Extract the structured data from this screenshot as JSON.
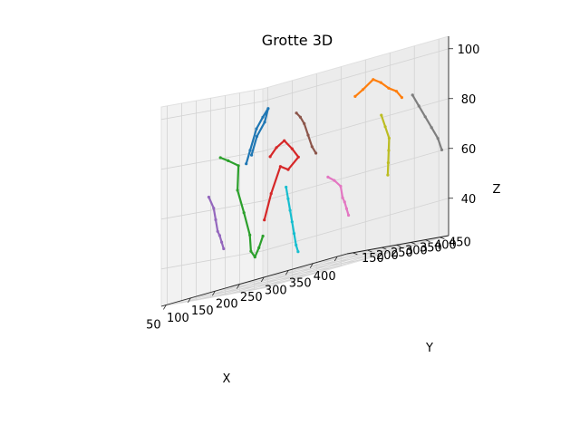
{
  "chart_data": {
    "type": "line",
    "projection": "3d",
    "title": "Grotte 3D",
    "xlabel": "X",
    "ylabel": "Y",
    "zlabel": "Z",
    "xticks": [
      50,
      100,
      150,
      200,
      250,
      300,
      350,
      400
    ],
    "yticks": [
      150,
      200,
      250,
      300,
      350,
      400,
      450
    ],
    "zticks": [
      40,
      60,
      80,
      100
    ],
    "xlim": [
      40,
      420
    ],
    "ylim": [
      130,
      480
    ],
    "zlim": [
      25,
      105
    ],
    "grid": true,
    "series": [
      {
        "color": "#1f77b4",
        "points": [
          [
            95,
            330,
            75
          ],
          [
            100,
            335,
            80
          ],
          [
            110,
            340,
            88
          ],
          [
            120,
            345,
            92
          ],
          [
            125,
            355,
            95
          ],
          [
            115,
            360,
            90
          ],
          [
            105,
            350,
            85
          ],
          [
            100,
            340,
            78
          ]
        ]
      },
      {
        "color": "#ff7f0e",
        "points": [
          [
            300,
            360,
            90
          ],
          [
            310,
            370,
            92
          ],
          [
            325,
            380,
            95
          ],
          [
            335,
            390,
            93
          ],
          [
            345,
            400,
            90
          ],
          [
            355,
            410,
            88
          ],
          [
            360,
            420,
            85
          ]
        ]
      },
      {
        "color": "#2ca02c",
        "points": [
          [
            60,
            300,
            80
          ],
          [
            70,
            310,
            78
          ],
          [
            85,
            320,
            75
          ],
          [
            95,
            300,
            65
          ],
          [
            120,
            280,
            55
          ],
          [
            150,
            250,
            45
          ],
          [
            170,
            220,
            38
          ],
          [
            190,
            200,
            35
          ],
          [
            210,
            180,
            38
          ],
          [
            230,
            160,
            42
          ]
        ]
      },
      {
        "color": "#d62728",
        "points": [
          [
            150,
            320,
            75
          ],
          [
            160,
            325,
            78
          ],
          [
            170,
            335,
            80
          ],
          [
            180,
            345,
            76
          ],
          [
            190,
            350,
            72
          ],
          [
            175,
            340,
            68
          ],
          [
            165,
            330,
            70
          ],
          [
            155,
            315,
            60
          ],
          [
            150,
            300,
            50
          ]
        ]
      },
      {
        "color": "#9467bd",
        "points": [
          [
            60,
            260,
            65
          ],
          [
            70,
            260,
            60
          ],
          [
            80,
            250,
            55
          ],
          [
            90,
            240,
            50
          ],
          [
            100,
            230,
            48
          ],
          [
            110,
            220,
            45
          ],
          [
            120,
            210,
            42
          ]
        ]
      },
      {
        "color": "#8c564b",
        "points": [
          [
            180,
            360,
            90
          ],
          [
            185,
            365,
            88
          ],
          [
            190,
            370,
            85
          ],
          [
            195,
            375,
            80
          ],
          [
            200,
            380,
            75
          ],
          [
            205,
            385,
            72
          ]
        ]
      },
      {
        "color": "#e377c2",
        "points": [
          [
            280,
            300,
            60
          ],
          [
            290,
            305,
            58
          ],
          [
            300,
            310,
            55
          ],
          [
            310,
            300,
            50
          ],
          [
            320,
            290,
            48
          ],
          [
            330,
            280,
            45
          ],
          [
            340,
            270,
            42
          ]
        ]
      },
      {
        "color": "#7f7f7f",
        "points": [
          [
            370,
            440,
            85
          ],
          [
            380,
            445,
            80
          ],
          [
            390,
            450,
            75
          ],
          [
            400,
            455,
            70
          ],
          [
            410,
            460,
            65
          ],
          [
            415,
            465,
            60
          ]
        ]
      },
      {
        "color": "#bcbd22",
        "points": [
          [
            330,
            400,
            80
          ],
          [
            335,
            405,
            75
          ],
          [
            340,
            410,
            70
          ],
          [
            345,
            400,
            65
          ],
          [
            350,
            390,
            60
          ],
          [
            355,
            380,
            55
          ]
        ]
      },
      {
        "color": "#17becf",
        "points": [
          [
            230,
            240,
            60
          ],
          [
            240,
            230,
            55
          ],
          [
            250,
            220,
            50
          ],
          [
            260,
            210,
            45
          ],
          [
            270,
            200,
            40
          ],
          [
            280,
            190,
            35
          ],
          [
            290,
            180,
            32
          ]
        ]
      }
    ]
  }
}
